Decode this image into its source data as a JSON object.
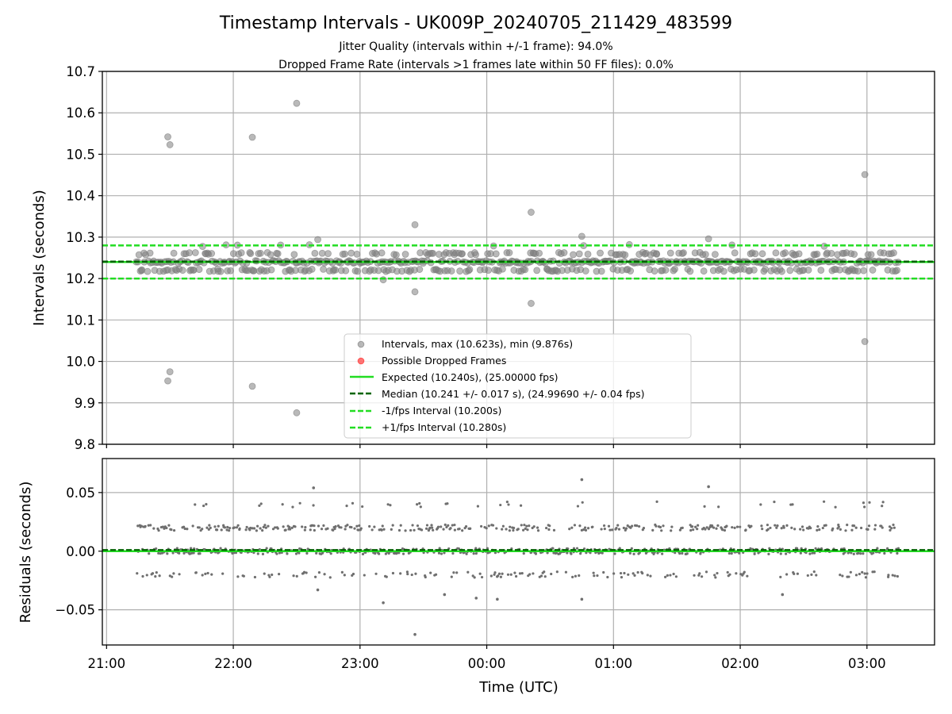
{
  "chart_data": [
    {
      "panel": "intervals",
      "type": "scatter",
      "title": "Timestamp Intervals - UK009P_20240705_211429_483599",
      "subtitle_lines": [
        "Jitter Quality (intervals within +/-1 frame): 94.0%",
        "Dropped Frame Rate (intervals >1 frames late within 50 FF files): 0.0%"
      ],
      "xlabel": "Time (UTC)",
      "ylabel": "Intervals (seconds)",
      "x_range": [
        "20:58",
        "03:32"
      ],
      "ylim": [
        9.8,
        10.7
      ],
      "yticks": [
        9.8,
        9.9,
        10.0,
        10.1,
        10.2,
        10.3,
        10.4,
        10.5,
        10.6,
        10.7
      ],
      "ytick_labels": [
        "9.8",
        "9.9",
        "10.0",
        "10.1",
        "10.2",
        "10.3",
        "10.4",
        "10.5",
        "10.6",
        "10.7"
      ],
      "grid": true,
      "legend_position": "lower-center",
      "colors": {
        "intervals": "#808080",
        "dropped": "#ff3b3b",
        "expected": "#22dd22",
        "median": "#006400",
        "bounds": "#22dd22"
      },
      "data_span": [
        "21:14",
        "03:15"
      ],
      "interval_levels": [
        10.22,
        10.24,
        10.26,
        10.28
      ],
      "series": [
        {
          "name": "Intervals, max (10.623s), min (9.876s)",
          "outliers": [
            {
              "x": "21:29",
              "y": 10.542
            },
            {
              "x": "21:30",
              "y": 10.523
            },
            {
              "x": "21:30",
              "y": 9.975
            },
            {
              "x": "21:29",
              "y": 9.953
            },
            {
              "x": "22:09",
              "y": 10.541
            },
            {
              "x": "22:09",
              "y": 9.94
            },
            {
              "x": "22:30",
              "y": 10.623
            },
            {
              "x": "22:30",
              "y": 9.876
            },
            {
              "x": "23:26",
              "y": 10.33
            },
            {
              "x": "23:26",
              "y": 10.168
            },
            {
              "x": "00:21",
              "y": 10.36
            },
            {
              "x": "00:21",
              "y": 10.14
            },
            {
              "x": "00:45",
              "y": 10.302
            },
            {
              "x": "01:45",
              "y": 10.296
            },
            {
              "x": "02:59",
              "y": 10.451
            },
            {
              "x": "02:59",
              "y": 10.048
            },
            {
              "x": "22:40",
              "y": 10.294
            },
            {
              "x": "23:11",
              "y": 10.197
            }
          ]
        },
        {
          "name": "Possible Dropped Frames",
          "points": []
        },
        {
          "name": "Expected (10.240s), (25.00000 fps)",
          "y": 10.24
        },
        {
          "name": "Median (10.241 +/- 0.017 s), (24.99690 +/- 0.04 fps)",
          "y": 10.241
        },
        {
          "name": "-1/fps Interval (10.200s)",
          "y": 10.2
        },
        {
          "name": "+1/fps Interval (10.280s)",
          "y": 10.28
        }
      ]
    },
    {
      "panel": "residuals",
      "type": "scatter",
      "xlabel": "Time (UTC)",
      "ylabel": "Residuals (seconds)",
      "x_range": [
        "20:58",
        "03:32"
      ],
      "xticks": [
        "21:00",
        "22:00",
        "23:00",
        "00:00",
        "01:00",
        "02:00",
        "03:00"
      ],
      "ylim": [
        -0.08,
        0.079
      ],
      "yticks": [
        -0.05,
        0.0,
        0.05
      ],
      "ytick_labels": [
        "−0.05",
        "0.00",
        "0.05"
      ],
      "grid": true,
      "residual_levels": [
        -0.02,
        0.0,
        0.02,
        0.04
      ],
      "zero_line": 0.0,
      "median_line": 0.001,
      "outliers": [
        {
          "x": "22:38",
          "y": 0.054
        },
        {
          "x": "00:45",
          "y": 0.061
        },
        {
          "x": "01:45",
          "y": 0.055
        },
        {
          "x": "23:11",
          "y": -0.044
        },
        {
          "x": "23:26",
          "y": -0.071
        },
        {
          "x": "23:55",
          "y": -0.04
        },
        {
          "x": "00:05",
          "y": -0.041
        },
        {
          "x": "00:45",
          "y": -0.041
        },
        {
          "x": "02:20",
          "y": -0.037
        },
        {
          "x": "22:40",
          "y": -0.033
        },
        {
          "x": "23:40",
          "y": -0.037
        }
      ]
    }
  ]
}
